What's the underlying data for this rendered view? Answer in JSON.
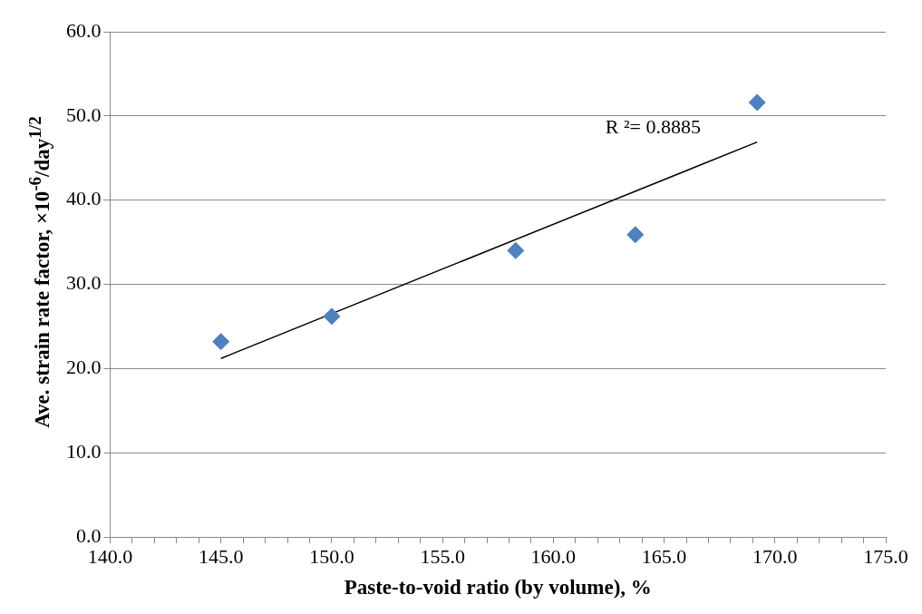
{
  "chart_data": {
    "type": "scatter",
    "xlabel": "Paste-to-void ratio (by volume), %",
    "ylabel": "Ave. strain rate factor, ×10$^{-6}$/day$^{1/2}$",
    "x": [
      145.0,
      150.0,
      158.3,
      163.7,
      169.2
    ],
    "series": [
      {
        "color": "#4f81bd",
        "values": [
          23.2,
          26.2,
          34.0,
          35.9,
          51.6
        ],
        "marker": "diamond"
      },
      {
        "type": "line",
        "x": [
          145.0,
          169.2
        ],
        "values": [
          21.2,
          46.9
        ],
        "color": "#000000",
        "marker": "none"
      }
    ],
    "xlim": [
      140,
      175
    ],
    "xticks": [
      {
        "value": 140,
        "label": "140.0"
      },
      {
        "value": 141,
        "label": null
      },
      {
        "value": 142,
        "label": null
      },
      {
        "value": 143,
        "label": null
      },
      {
        "value": 144,
        "label": null
      },
      {
        "value": 145,
        "label": "145.0"
      },
      {
        "value": 146,
        "label": null
      },
      {
        "value": 147,
        "label": null
      },
      {
        "value": 148,
        "label": null
      },
      {
        "value": 149,
        "label": null
      },
      {
        "value": 150,
        "label": "150.0"
      },
      {
        "value": 151,
        "label": null
      },
      {
        "value": 152,
        "label": null
      },
      {
        "value": 153,
        "label": null
      },
      {
        "value": 154,
        "label": null
      },
      {
        "value": 155,
        "label": "155.0"
      },
      {
        "value": 156,
        "label": null
      },
      {
        "value": 157,
        "label": null
      },
      {
        "value": 158,
        "label": null
      },
      {
        "value": 159,
        "label": null
      },
      {
        "value": 160,
        "label": "160.0"
      },
      {
        "value": 161,
        "label": null
      },
      {
        "value": 162,
        "label": null
      },
      {
        "value": 163,
        "label": null
      },
      {
        "value": 164,
        "label": null
      },
      {
        "value": 165,
        "label": "165.0"
      },
      {
        "value": 166,
        "label": null
      },
      {
        "value": 167,
        "label": null
      },
      {
        "value": 168,
        "label": null
      },
      {
        "value": 169,
        "label": null
      },
      {
        "value": 170,
        "label": "170.0"
      },
      {
        "value": 171,
        "label": null
      },
      {
        "value": 172,
        "label": null
      },
      {
        "value": 173,
        "label": null
      },
      {
        "value": 174,
        "label": null
      },
      {
        "value": 175,
        "label": "175.0"
      }
    ],
    "ylim": [
      0,
      60
    ],
    "yticks": [
      {
        "value": 0,
        "label": "0.0"
      },
      {
        "value": 10,
        "label": "10.0"
      },
      {
        "value": 20,
        "label": "20.0"
      },
      {
        "value": 30,
        "label": "30.0"
      },
      {
        "value": 40,
        "label": "40.0"
      },
      {
        "value": 50,
        "label": "50.0"
      },
      {
        "value": 60,
        "label": "60.0"
      }
    ],
    "grid": "y",
    "legend": false,
    "annotations": [
      "R ²= 0.8885"
    ]
  }
}
